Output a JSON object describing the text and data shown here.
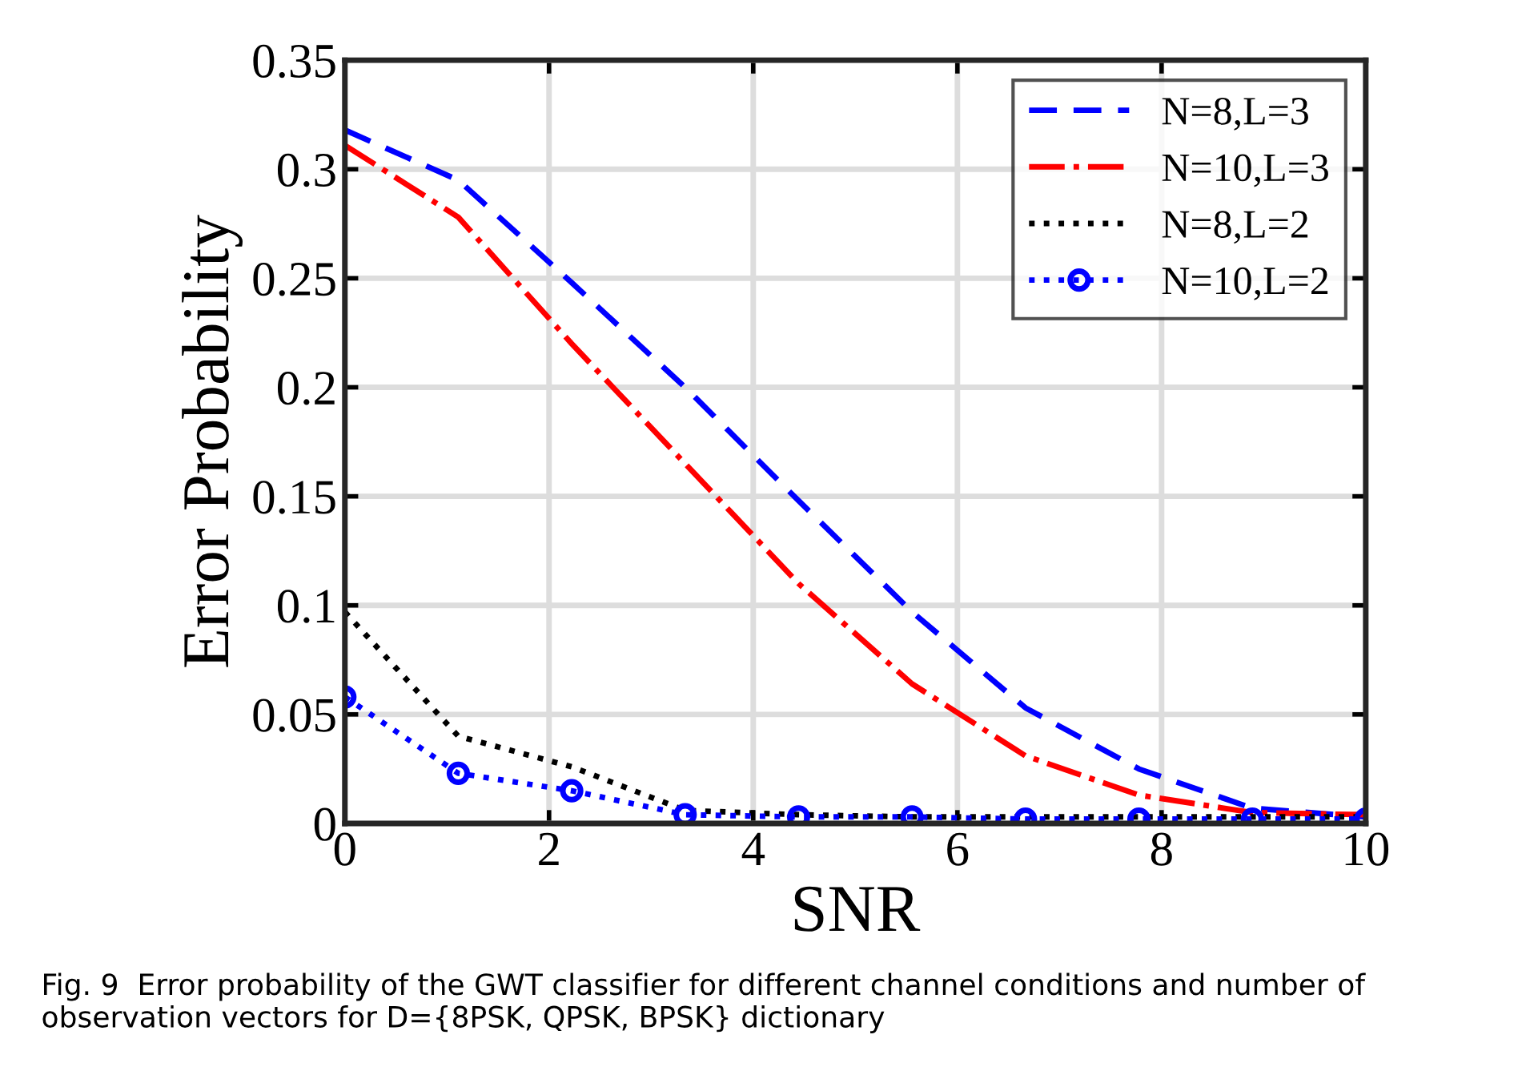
{
  "chart_data": {
    "type": "line",
    "xlabel": "SNR",
    "ylabel": "Error Probability",
    "x": [
      0,
      1.111,
      2.222,
      3.333,
      4.444,
      5.556,
      6.667,
      7.778,
      8.889,
      10
    ],
    "xlim": [
      0,
      10
    ],
    "xticks": [
      0,
      2,
      4,
      6,
      8,
      10
    ],
    "ylim": [
      0,
      0.35
    ],
    "yticks": [
      0,
      0.05,
      0.1,
      0.15,
      0.2,
      0.25,
      0.3,
      0.35
    ],
    "grid": true,
    "legend": "top right",
    "series": [
      {
        "name": "N=8,L=3",
        "color": "#0000ff",
        "line_style": "dashed",
        "marker": "none",
        "values": [
          0.318,
          0.295,
          0.248,
          0.2,
          0.148,
          0.097,
          0.053,
          0.025,
          0.007,
          0.003
        ]
      },
      {
        "name": "N=10,L=3",
        "color": "#ff0000",
        "line_style": "dashdot",
        "marker": "none",
        "values": [
          0.311,
          0.278,
          0.22,
          0.165,
          0.11,
          0.064,
          0.031,
          0.013,
          0.005,
          0.004
        ]
      },
      {
        "name": "N=8,L=2",
        "color": "#000000",
        "line_style": "dotted",
        "marker": "none",
        "values": [
          0.097,
          0.04,
          0.026,
          0.006,
          0.004,
          0.003,
          0.003,
          0.003,
          0.003,
          0.003
        ]
      },
      {
        "name": "N=10,L=2",
        "color": "#0000ff",
        "line_style": "dotted",
        "marker": "circle",
        "values": [
          0.058,
          0.023,
          0.015,
          0.004,
          0.003,
          0.003,
          0.002,
          0.002,
          0.002,
          0.002
        ]
      }
    ],
    "annotations": [
      "Fig. 9  Error probability of the GWT classifier for different channel conditions and number of observation vectors for D={8PSK, QPSK, BPSK} dictionary"
    ]
  }
}
